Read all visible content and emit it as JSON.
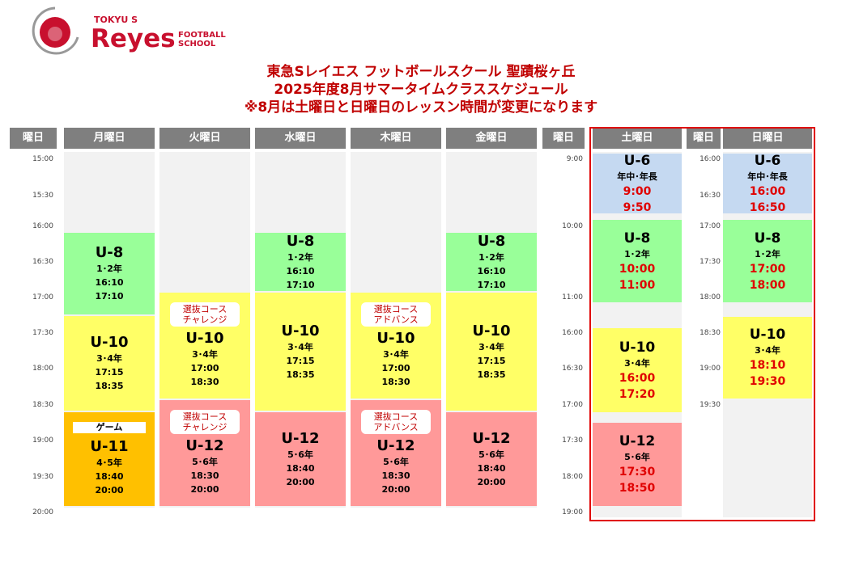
{
  "logo": {
    "small": "TOKYU S",
    "main": "Reyes",
    "sub1": "FOOTBALL",
    "sub2": "SCHOOL",
    "ring": "Reyes"
  },
  "title": [
    "東急Sレイエス フットボールスクール 聖蹟桜ヶ丘",
    "2025年度8月サマータイムクラススケジュール",
    "※8月は土曜日と日曜日のレッスン時間が変更になります"
  ],
  "headers": {
    "time": "曜日",
    "mon": "月曜日",
    "tue": "火曜日",
    "wed": "水曜日",
    "thu": "木曜日",
    "fri": "金曜日",
    "sat": "土曜日",
    "sun": "日曜日"
  },
  "times_weekday": [
    "15:00",
    "15:30",
    "16:00",
    "16:30",
    "17:00",
    "17:30",
    "18:00",
    "18:30",
    "19:00",
    "19:30",
    "20:00"
  ],
  "times_sat": [
    "9:00",
    "10:00",
    "11:00",
    "16:00",
    "16:30",
    "17:00",
    "17:30",
    "18:00",
    "19:00"
  ],
  "times_sun": [
    "16:00",
    "16:30",
    "17:00",
    "17:30",
    "18:00",
    "18:30",
    "19:00",
    "19:30"
  ],
  "colors": {
    "u6": "#c5d9f1",
    "u8": "#99ff99",
    "u10": "#ffff66",
    "u11": "#ffc000",
    "u12": "#ff9999"
  },
  "schedule": {
    "mon": [
      {
        "class": "U-8",
        "grade": "1･2年",
        "start": "16:10",
        "end": "17:10"
      },
      {
        "class": "U-10",
        "grade": "3･4年",
        "start": "17:15",
        "end": "18:35"
      },
      {
        "class": "U-11",
        "grade": "4･5年",
        "start": "18:40",
        "end": "20:00",
        "label": "ゲーム"
      }
    ],
    "tue": [
      {
        "class": "U-10",
        "grade": "3･4年",
        "start": "17:00",
        "end": "18:30",
        "badge": [
          "選抜コース",
          "チャレンジ"
        ]
      },
      {
        "class": "U-12",
        "grade": "5･6年",
        "start": "18:30",
        "end": "20:00",
        "badge": [
          "選抜コース",
          "チャレンジ"
        ]
      }
    ],
    "wed": [
      {
        "class": "U-8",
        "grade": "1･2年",
        "start": "16:10",
        "end": "17:10"
      },
      {
        "class": "U-10",
        "grade": "3･4年",
        "start": "17:15",
        "end": "18:35"
      },
      {
        "class": "U-12",
        "grade": "5･6年",
        "start": "18:40",
        "end": "20:00"
      }
    ],
    "thu": [
      {
        "class": "U-10",
        "grade": "3･4年",
        "start": "17:00",
        "end": "18:30",
        "badge": [
          "選抜コース",
          "アドバンス"
        ]
      },
      {
        "class": "U-12",
        "grade": "5･6年",
        "start": "18:30",
        "end": "20:00",
        "badge": [
          "選抜コース",
          "アドバンス"
        ]
      }
    ],
    "fri": [
      {
        "class": "U-8",
        "grade": "1･2年",
        "start": "16:10",
        "end": "17:10"
      },
      {
        "class": "U-10",
        "grade": "3･4年",
        "start": "17:15",
        "end": "18:35"
      },
      {
        "class": "U-12",
        "grade": "5･6年",
        "start": "18:40",
        "end": "20:00"
      }
    ],
    "sat": [
      {
        "class": "U-6",
        "grade": "年中･年長",
        "start": "9:00",
        "end": "9:50"
      },
      {
        "class": "U-8",
        "grade": "1･2年",
        "start": "10:00",
        "end": "11:00"
      },
      {
        "class": "U-10",
        "grade": "3･4年",
        "start": "16:00",
        "end": "17:20"
      },
      {
        "class": "U-12",
        "grade": "5･6年",
        "start": "17:30",
        "end": "18:50"
      }
    ],
    "sun": [
      {
        "class": "U-6",
        "grade": "年中･年長",
        "start": "16:00",
        "end": "16:50"
      },
      {
        "class": "U-8",
        "grade": "1･2年",
        "start": "17:00",
        "end": "18:00"
      },
      {
        "class": "U-10",
        "grade": "3･4年",
        "start": "18:10",
        "end": "19:30"
      }
    ]
  }
}
